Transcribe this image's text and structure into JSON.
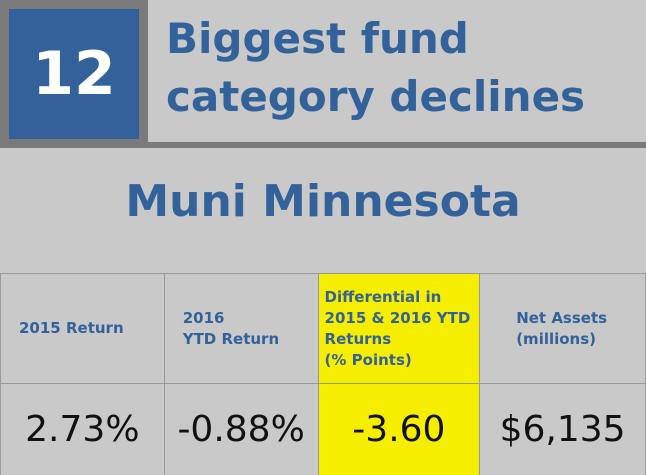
{
  "header": {
    "rank": "12",
    "title_line1": "Biggest fund",
    "title_line2": "category declines"
  },
  "fund": {
    "name": "Muni Minnesota"
  },
  "table": {
    "columns": [
      {
        "label_lines": [
          "2015 Return"
        ],
        "value": "2.73%"
      },
      {
        "label_lines": [
          "2016",
          "YTD Return"
        ],
        "value": "-0.88%"
      },
      {
        "label_lines": [
          "Differential in",
          "2015 & 2016 YTD",
          "Returns",
          "(% Points)"
        ],
        "value": "-3.60"
      },
      {
        "label_lines": [
          "Net Assets",
          "(millions)"
        ],
        "value": "$6,135"
      }
    ],
    "highlight_color": "#f5ee00"
  },
  "colors": {
    "accent": "#33619a",
    "background": "#c9c9c9",
    "frame": "#7a7a7a"
  }
}
